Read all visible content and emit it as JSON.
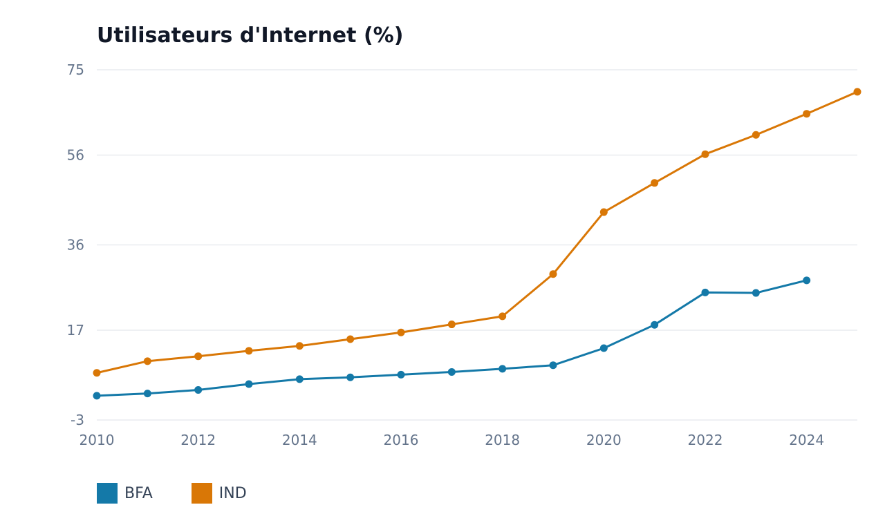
{
  "chart_data": {
    "type": "line",
    "title": "Utilisateurs d'Internet (%)",
    "xlabel": "",
    "ylabel": "",
    "x": [
      2010,
      2011,
      2012,
      2013,
      2014,
      2015,
      2016,
      2017,
      2018,
      2019,
      2020,
      2021,
      2022,
      2023,
      2024,
      2025
    ],
    "x_ticks": [
      2010,
      2012,
      2014,
      2016,
      2018,
      2020,
      2022,
      2024
    ],
    "y_ticks": [
      -3,
      17,
      36,
      56,
      75
    ],
    "ylim": [
      -3,
      75
    ],
    "xlim": [
      2010,
      2025
    ],
    "grid": true,
    "legend_position": "bottom-left",
    "series": [
      {
        "name": "BFA",
        "color": "#1479a8",
        "values": [
          2.4,
          2.9,
          3.7,
          5.0,
          6.1,
          6.5,
          7.1,
          7.7,
          8.4,
          9.2,
          13.0,
          18.2,
          25.4,
          25.3,
          28.1,
          null
        ]
      },
      {
        "name": "IND",
        "color": "#d97706",
        "values": [
          7.5,
          10.1,
          11.2,
          12.4,
          13.5,
          15.0,
          16.5,
          18.3,
          20.1,
          29.5,
          43.3,
          49.8,
          56.2,
          60.5,
          65.2,
          70.1
        ]
      }
    ]
  }
}
